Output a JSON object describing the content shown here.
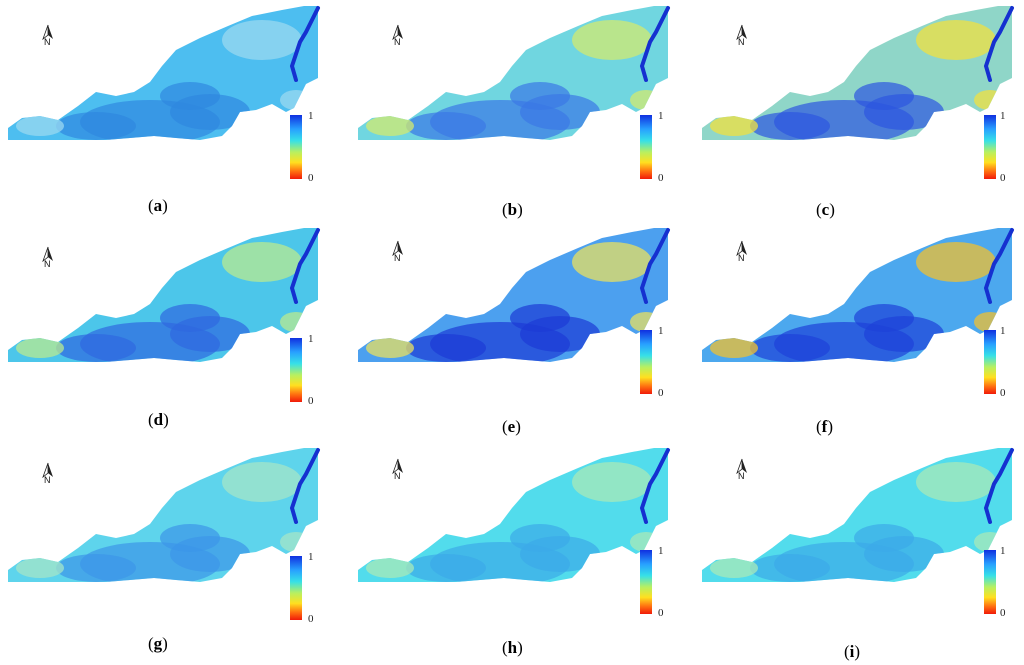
{
  "legend": {
    "max_label": "1",
    "min_label": "0",
    "colors": [
      "#1030e0",
      "#28a0ff",
      "#36e0e8",
      "#b8f060",
      "#ffe020",
      "#ff7010",
      "#f01a0a"
    ]
  },
  "north_arrow": {
    "letter": "N"
  },
  "panels": [
    {
      "id": "a",
      "label": "a",
      "base_color": "#4dbef0",
      "dark_color": "#2f88e0",
      "accent_color": "#9ad8f0",
      "legend_shown": true
    },
    {
      "id": "b",
      "label": "b",
      "base_color": "#70d6e0",
      "dark_color": "#3a78e6",
      "accent_color": "#d2ea70",
      "legend_shown": true
    },
    {
      "id": "c",
      "label": "c",
      "base_color": "#8fd6c8",
      "dark_color": "#2c55e0",
      "accent_color": "#f0e040",
      "legend_shown": true
    },
    {
      "id": "d",
      "label": "d",
      "base_color": "#4cc6ea",
      "dark_color": "#2f68e0",
      "accent_color": "#b8ea90",
      "legend_shown": true
    },
    {
      "id": "e",
      "label": "e",
      "base_color": "#4ca0ef",
      "dark_color": "#1c3ad6",
      "accent_color": "#e8e060",
      "legend_shown": true
    },
    {
      "id": "f",
      "label": "f",
      "base_color": "#4ca8ee",
      "dark_color": "#1e42d8",
      "accent_color": "#f0c030",
      "legend_shown": true
    },
    {
      "id": "g",
      "label": "g",
      "base_color": "#5ed4ec",
      "dark_color": "#3c96e8",
      "accent_color": "#a4e6c8",
      "legend_shown": true
    },
    {
      "id": "h",
      "label": "h",
      "base_color": "#52dcec",
      "dark_color": "#3caae8",
      "accent_color": "#a8eab8",
      "legend_shown": true
    },
    {
      "id": "i",
      "label": "i",
      "base_color": "#52dcec",
      "dark_color": "#3caae8",
      "accent_color": "#a8eab8",
      "legend_shown": true
    }
  ]
}
